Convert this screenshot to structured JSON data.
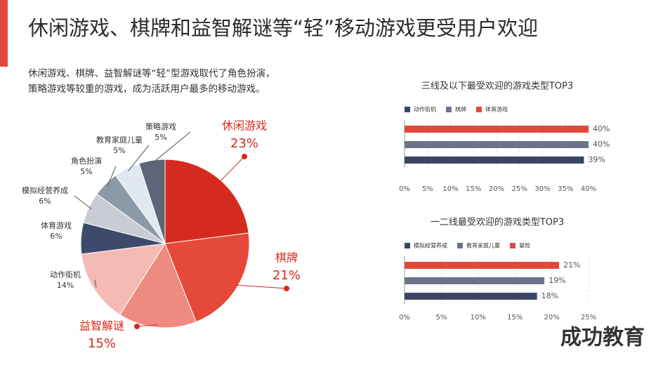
{
  "title": "休闲游戏、棋牌和益智解谜等“轻”移动游戏更受用户欢迎",
  "subtitle": [
    "休闲游戏、棋牌、益智解谜等“轻”型游戏取代了角色扮演，",
    "策略游戏等较重的游戏，成为活跃用户最多的移动游戏。"
  ],
  "watermark": "成功教育",
  "chart_data": [
    {
      "type": "pie",
      "categories": [
        "休闲游戏",
        "棋牌",
        "益智解谜",
        "动作街机",
        "体育游戏",
        "模拟经营养成",
        "角色扮演",
        "教育家庭儿童",
        "策略游戏"
      ],
      "values": [
        23,
        21,
        15,
        14,
        6,
        6,
        5,
        5,
        5
      ],
      "value_labels": [
        "23%",
        "21%",
        "15%",
        "14%",
        "6%",
        "6%",
        "5%",
        "5%",
        "5%"
      ],
      "colors": [
        "#d42b1e",
        "#e5493a",
        "#ef8a80",
        "#f6bab4",
        "#3d4a6b",
        "#c9ccd2",
        "#8c9aa8",
        "#e1e8ef",
        "#5d6678"
      ]
    },
    {
      "type": "hbar",
      "title": "三线及以下最受欢迎的游戏类型TOP3",
      "series": [
        {
          "name": "动作街机",
          "color": "#3a4566",
          "values": [
            39
          ]
        },
        {
          "name": "棋牌",
          "color": "#6b7389",
          "values": [
            40
          ]
        },
        {
          "name": "体育游戏",
          "color": "#e0493a",
          "values": [
            40
          ]
        }
      ],
      "value_labels": [
        "39%",
        "40%",
        "40%"
      ],
      "xlim": [
        0,
        40
      ],
      "xticks": [
        {
          "value": 0,
          "label": "0%"
        },
        {
          "value": 5,
          "label": "5%"
        },
        {
          "value": 10,
          "label": "10%"
        },
        {
          "value": 15,
          "label": "15%"
        },
        {
          "value": 20,
          "label": "20%"
        },
        {
          "value": 25,
          "label": "25%"
        },
        {
          "value": 30,
          "label": "30%"
        },
        {
          "value": 35,
          "label": "35%"
        },
        {
          "value": 40,
          "label": "40%"
        }
      ],
      "grid": true
    },
    {
      "type": "hbar",
      "title": "一二线最受欢迎的游戏类型TOP3",
      "series": [
        {
          "name": "模拟经营养成",
          "color": "#3a4566",
          "values": [
            18
          ]
        },
        {
          "name": "教育家庭儿童",
          "color": "#6b7389",
          "values": [
            19
          ]
        },
        {
          "name": "冒险",
          "color": "#e0493a",
          "values": [
            21
          ]
        }
      ],
      "value_labels": [
        "18%",
        "19%",
        "21%"
      ],
      "xlim": [
        0,
        25
      ],
      "xticks": [
        {
          "value": 0,
          "label": "0%"
        },
        {
          "value": 5,
          "label": "5%"
        },
        {
          "value": 10,
          "label": "10%"
        },
        {
          "value": 15,
          "label": "15%"
        },
        {
          "value": 20,
          "label": "20%"
        },
        {
          "value": 25,
          "label": "25%"
        }
      ],
      "grid": true
    }
  ]
}
